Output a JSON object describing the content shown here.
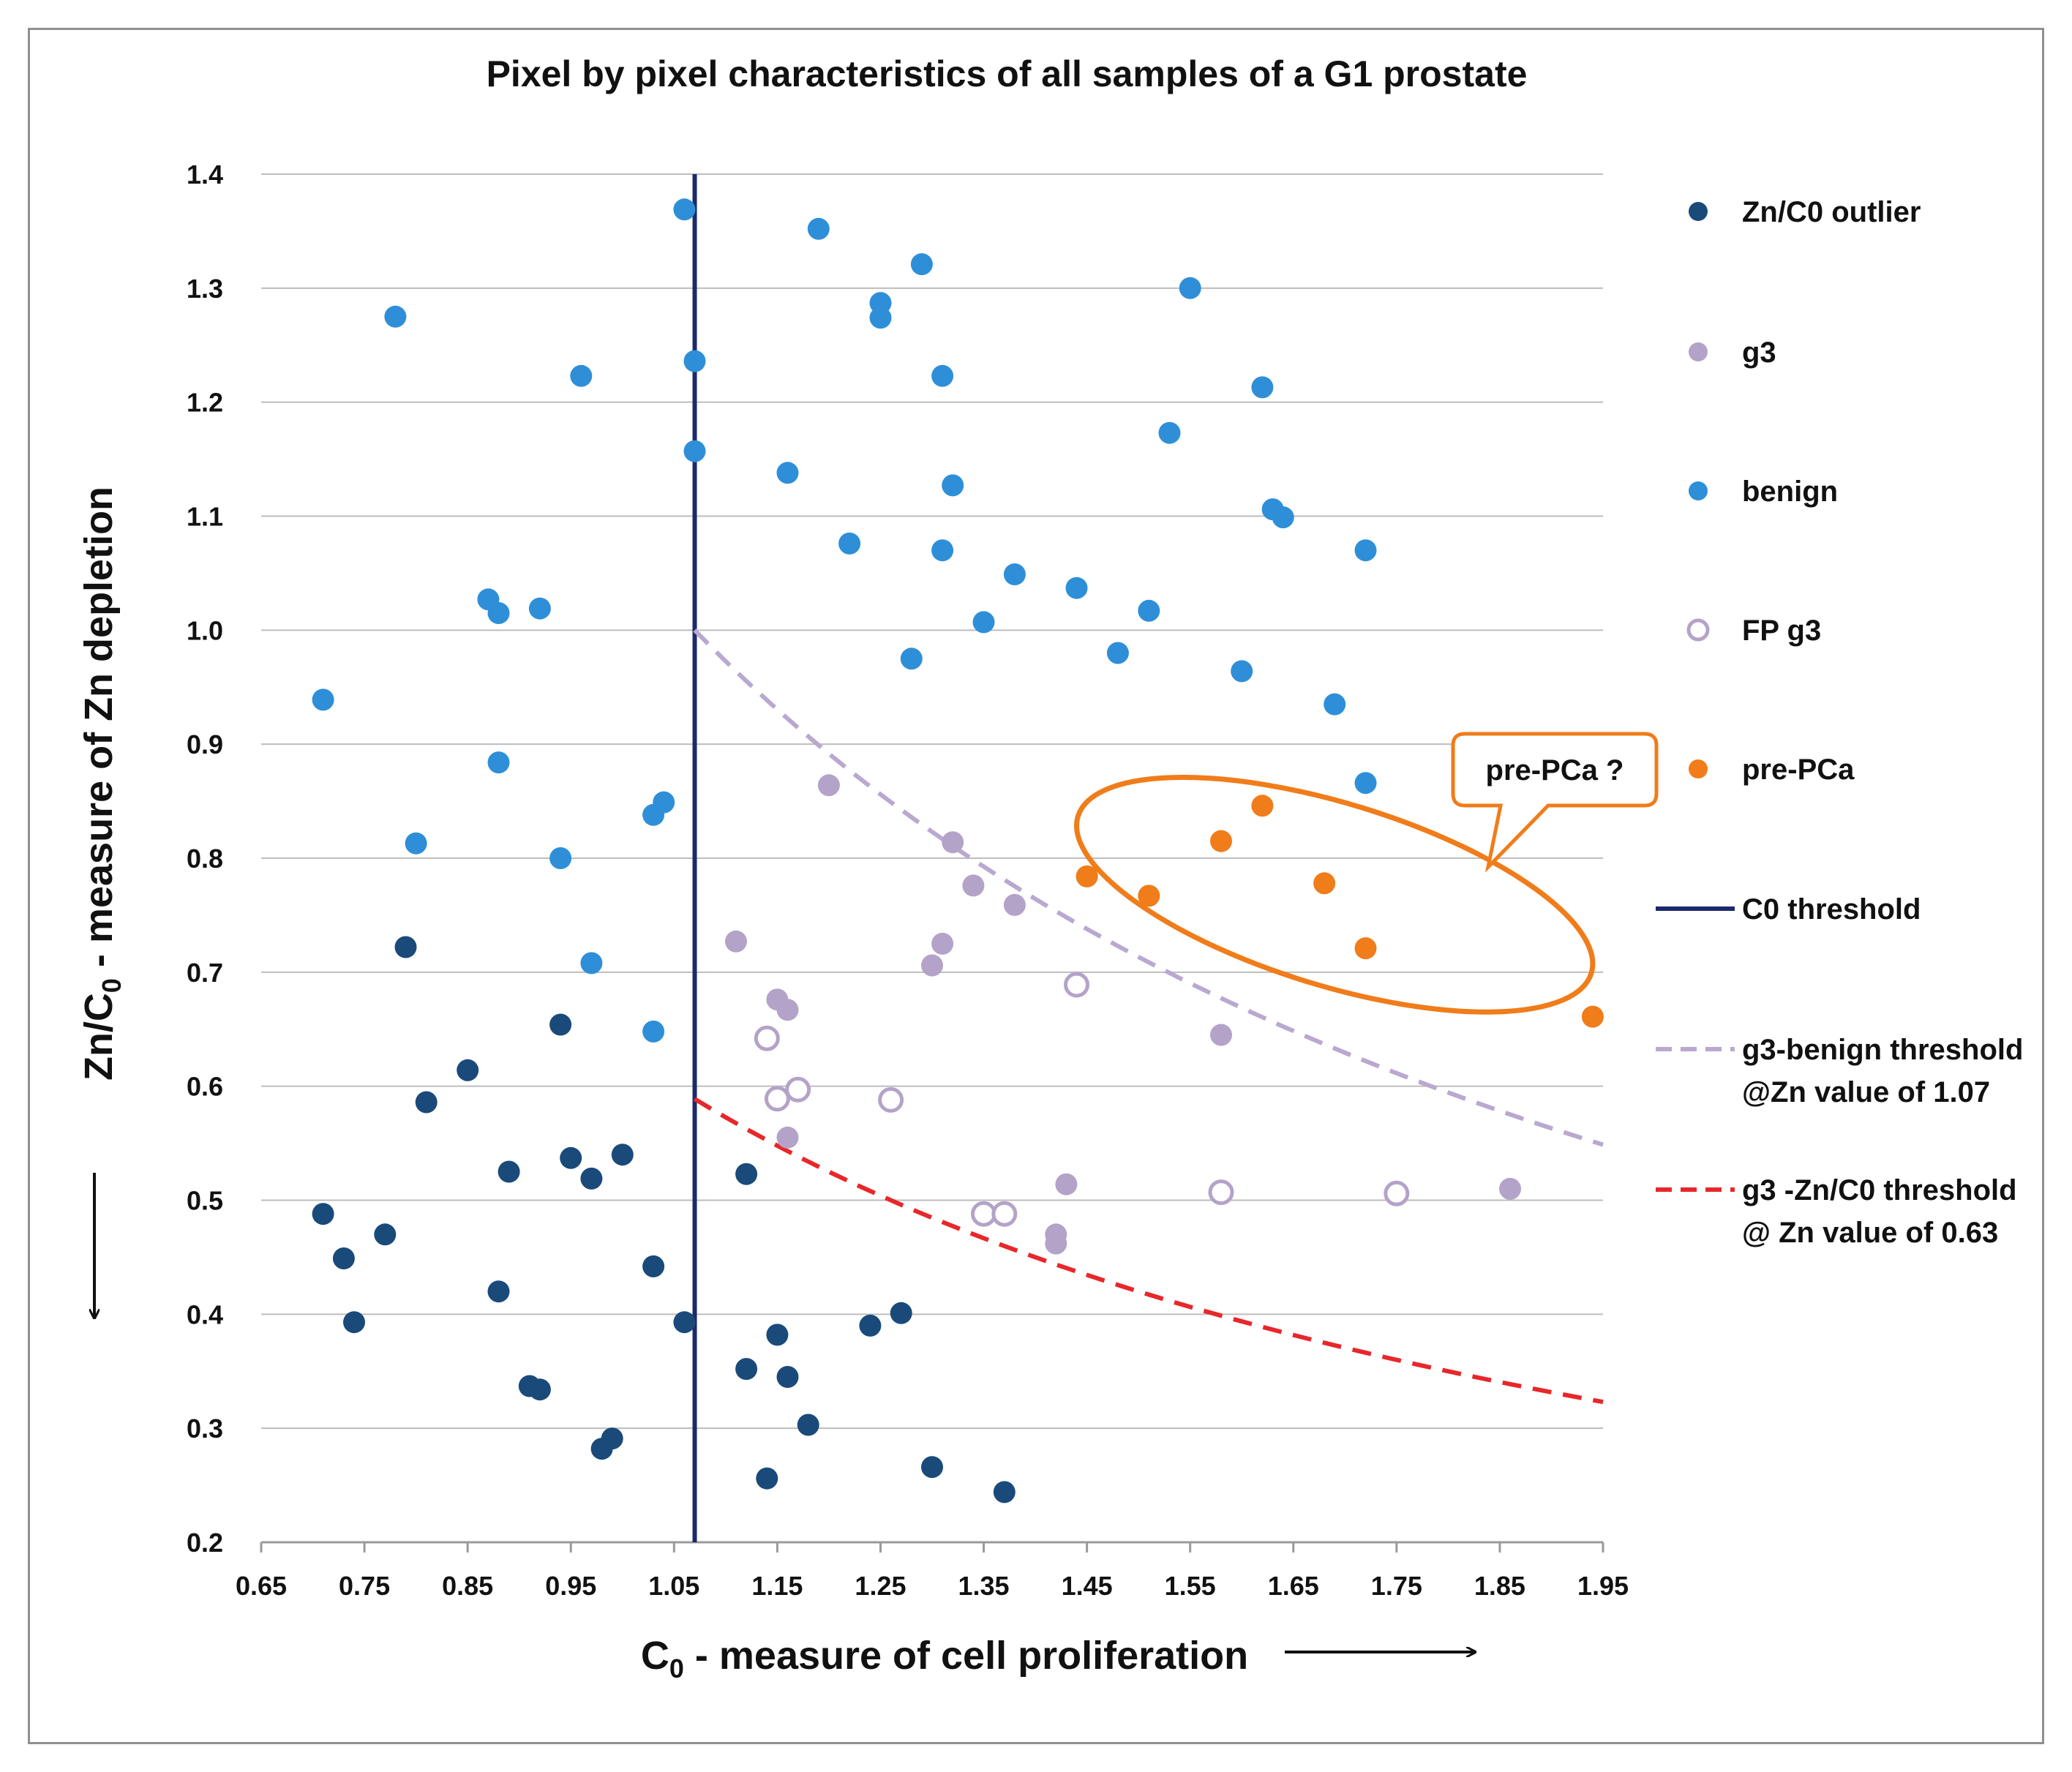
{
  "chart_data": {
    "type": "scatter",
    "title": "Pixel by pixel characteristics of all samples of a G1 prostate",
    "xlabel": {
      "main": "C",
      "sub": "0",
      "rest": " - measure of cell proliferation"
    },
    "ylabel": {
      "pre": "Zn/C",
      "sub": "0",
      "rest": " - measure of Zn depletion"
    },
    "xlim": [
      0.65,
      1.95
    ],
    "ylim": [
      0.2,
      1.4
    ],
    "xticks": [
      "0.65",
      "0.75",
      "0.85",
      "0.95",
      "1.05",
      "1.15",
      "1.25",
      "1.35",
      "1.45",
      "1.55",
      "1.65",
      "1.75",
      "1.85",
      "1.95"
    ],
    "yticks": [
      "0.2",
      "0.3",
      "0.4",
      "0.5",
      "0.6",
      "0.7",
      "0.8",
      "0.9",
      "1.0",
      "1.1",
      "1.2",
      "1.3",
      "1.4"
    ],
    "grid": "horizontal",
    "legend_position": "right",
    "colors": {
      "outlier": "#1a4a7a",
      "g3": "#b4a3c8",
      "benign": "#2e8fd8",
      "fp_g3": "#b4a3c8",
      "pre_pca": "#f07c1a",
      "c0_threshold": "#1b2a6b",
      "g3_benign_threshold": "#b9a8d0",
      "g3_zn_threshold": "#e8272a",
      "callout": "#f07c1a"
    },
    "series": [
      {
        "name": "Zn/C0 outlier",
        "key": "outlier",
        "marker": "filled",
        "points": [
          [
            0.71,
            0.488
          ],
          [
            0.73,
            0.449
          ],
          [
            0.74,
            0.393
          ],
          [
            0.77,
            0.47
          ],
          [
            0.79,
            0.722
          ],
          [
            0.81,
            0.586
          ],
          [
            0.85,
            0.614
          ],
          [
            0.88,
            0.42
          ],
          [
            0.89,
            0.525
          ],
          [
            0.91,
            0.337
          ],
          [
            0.92,
            0.334
          ],
          [
            0.94,
            0.654
          ],
          [
            0.95,
            0.537
          ],
          [
            0.97,
            0.519
          ],
          [
            0.98,
            0.282
          ],
          [
            0.99,
            0.291
          ],
          [
            1.0,
            0.54
          ],
          [
            1.03,
            0.442
          ],
          [
            1.06,
            0.393
          ],
          [
            1.12,
            0.523
          ],
          [
            1.12,
            0.352
          ],
          [
            1.14,
            0.256
          ],
          [
            1.15,
            0.382
          ],
          [
            1.16,
            0.345
          ],
          [
            1.18,
            0.303
          ],
          [
            1.24,
            0.39
          ],
          [
            1.27,
            0.401
          ],
          [
            1.3,
            0.266
          ],
          [
            1.37,
            0.244
          ]
        ]
      },
      {
        "name": "g3",
        "key": "g3",
        "marker": "filled",
        "points": [
          [
            1.11,
            0.727
          ],
          [
            1.15,
            0.676
          ],
          [
            1.16,
            0.667
          ],
          [
            1.16,
            0.555
          ],
          [
            1.2,
            0.864
          ],
          [
            1.3,
            0.706
          ],
          [
            1.31,
            0.725
          ],
          [
            1.32,
            0.814
          ],
          [
            1.34,
            0.776
          ],
          [
            1.38,
            0.759
          ],
          [
            1.42,
            0.47
          ],
          [
            1.42,
            0.462
          ],
          [
            1.43,
            0.514
          ],
          [
            1.58,
            0.645
          ],
          [
            1.86,
            0.51
          ]
        ]
      },
      {
        "name": "benign",
        "key": "benign",
        "marker": "filled",
        "points": [
          [
            0.71,
            0.939
          ],
          [
            0.78,
            1.275
          ],
          [
            0.8,
            0.813
          ],
          [
            0.87,
            1.027
          ],
          [
            0.88,
            0.884
          ],
          [
            0.88,
            1.015
          ],
          [
            0.92,
            1.019
          ],
          [
            0.94,
            0.8
          ],
          [
            0.96,
            1.223
          ],
          [
            0.97,
            0.708
          ],
          [
            1.03,
            0.648
          ],
          [
            1.03,
            0.838
          ],
          [
            1.04,
            0.849
          ],
          [
            1.06,
            1.369
          ],
          [
            1.07,
            1.236
          ],
          [
            1.07,
            1.157
          ],
          [
            1.16,
            1.138
          ],
          [
            1.19,
            1.352
          ],
          [
            1.22,
            1.076
          ],
          [
            1.25,
            1.287
          ],
          [
            1.25,
            1.274
          ],
          [
            1.28,
            0.975
          ],
          [
            1.29,
            1.321
          ],
          [
            1.31,
            1.223
          ],
          [
            1.31,
            1.07
          ],
          [
            1.32,
            1.127
          ],
          [
            1.35,
            1.007
          ],
          [
            1.38,
            1.049
          ],
          [
            1.44,
            1.037
          ],
          [
            1.48,
            0.98
          ],
          [
            1.51,
            1.017
          ],
          [
            1.53,
            1.173
          ],
          [
            1.55,
            1.3
          ],
          [
            1.6,
            0.964
          ],
          [
            1.62,
            1.213
          ],
          [
            1.63,
            1.106
          ],
          [
            1.64,
            1.099
          ],
          [
            1.69,
            0.935
          ],
          [
            1.72,
            0.866
          ],
          [
            1.72,
            1.07
          ]
        ]
      },
      {
        "name": "FP g3",
        "key": "fp_g3",
        "marker": "hollow",
        "points": [
          [
            1.14,
            0.642
          ],
          [
            1.15,
            0.589
          ],
          [
            1.17,
            0.597
          ],
          [
            1.26,
            0.588
          ],
          [
            1.35,
            0.488
          ],
          [
            1.37,
            0.488
          ],
          [
            1.44,
            0.689
          ],
          [
            1.58,
            0.507
          ],
          [
            1.75,
            0.506
          ]
        ]
      },
      {
        "name": "pre-PCa",
        "key": "pre_pca",
        "marker": "filled",
        "points": [
          [
            1.45,
            0.784
          ],
          [
            1.51,
            0.767
          ],
          [
            1.58,
            0.815
          ],
          [
            1.62,
            0.846
          ],
          [
            1.68,
            0.778
          ],
          [
            1.72,
            0.721
          ],
          [
            1.94,
            0.661
          ]
        ]
      }
    ],
    "lines": [
      {
        "name": "C0 threshold",
        "key": "c0_threshold",
        "style": "solid",
        "x0": 1.07,
        "y_from": 0.2,
        "y_to": 1.4
      },
      {
        "name": "g3-benign threshold",
        "name_line2": "@Zn value of 1.07",
        "key": "g3_benign_threshold",
        "style": "dashed",
        "k": 1.07,
        "x_from": 1.07,
        "x_to": 1.95
      },
      {
        "name": "g3 -Zn/C0 threshold",
        "name_line2": "@ Zn value of 0.63",
        "key": "g3_zn_threshold",
        "style": "dashed",
        "k": 0.63,
        "x_from": 1.07,
        "x_to": 1.95
      }
    ],
    "annotation": {
      "text": "pre-PCa ?",
      "ellipse_center": [
        1.69,
        0.768
      ],
      "ellipse_semi_axes": [
        0.26,
        0.08
      ],
      "ellipse_rotation_deg": 17
    },
    "arrows": [
      "down",
      "right"
    ]
  }
}
